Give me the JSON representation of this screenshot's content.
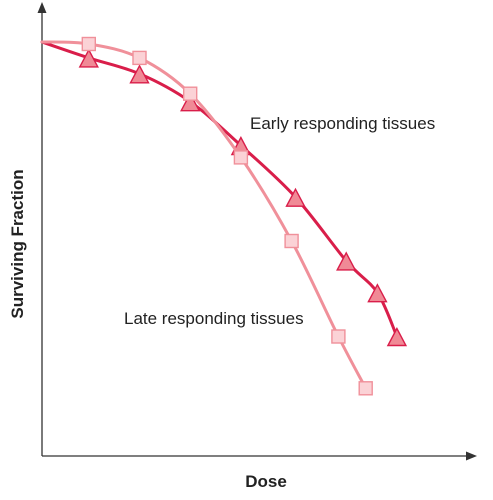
{
  "chart_data": {
    "type": "line",
    "title": "",
    "xlabel": "Dose",
    "ylabel": "Surviving Fraction",
    "xlim": [
      0,
      10
    ],
    "ylim": [
      0,
      10
    ],
    "grid": false,
    "legend": "none",
    "series": [
      {
        "name": "Early responding tissues",
        "color": "#d91e4a",
        "marker_fill": "#f08a96",
        "marker": "triangle",
        "x": [
          0,
          1.2,
          2.5,
          3.8,
          5.1,
          6.5,
          7.8,
          8.6,
          9.1
        ],
        "y": [
          10,
          9.6,
          9.2,
          8.5,
          7.4,
          6.1,
          4.5,
          3.7,
          2.6
        ]
      },
      {
        "name": "Late responding tissues",
        "color": "#f0909a",
        "marker_fill": "#fbd2d6",
        "marker": "square",
        "x": [
          0,
          1.2,
          2.5,
          3.8,
          5.1,
          6.4,
          7.6,
          8.3
        ],
        "y": [
          10,
          9.95,
          9.6,
          8.7,
          7.1,
          5.0,
          2.6,
          1.3
        ]
      }
    ],
    "annotations": [
      {
        "text": "Early responding tissues",
        "target": "Early responding tissues"
      },
      {
        "text": "Late responding tissues",
        "target": "Late responding tissues"
      }
    ]
  }
}
